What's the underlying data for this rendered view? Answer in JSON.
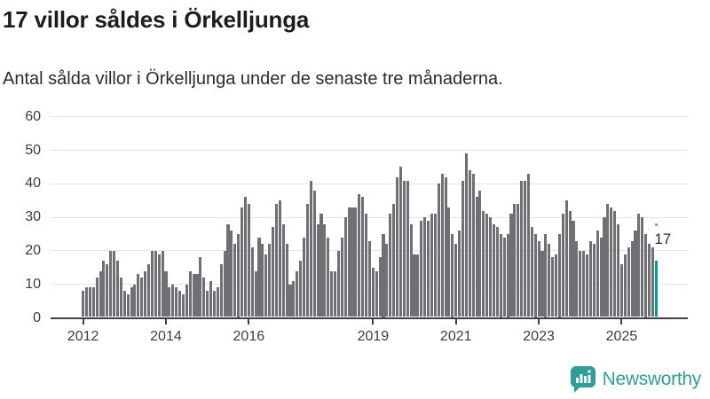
{
  "header": {
    "title": "17 villor såldes i Örkelljunga",
    "subtitle": "Antal sålda villor i Örkelljunga under de senaste tre månaderna."
  },
  "chart_data": {
    "type": "bar",
    "start_month": "2012-01",
    "end_month": "2025-11",
    "values": [
      8,
      9,
      9,
      9,
      12,
      14,
      17,
      16,
      20,
      20,
      17,
      12,
      8,
      7,
      9,
      10,
      13,
      12,
      14,
      16,
      20,
      20,
      19,
      20,
      14,
      9,
      10,
      9,
      8,
      7,
      10,
      14,
      13,
      13,
      18,
      12,
      8,
      11,
      8,
      9,
      16,
      20,
      28,
      26,
      22,
      25,
      33,
      36,
      34,
      21,
      14,
      24,
      22,
      19,
      22,
      27,
      34,
      35,
      28,
      22,
      10,
      11,
      14,
      17,
      24,
      34,
      41,
      38,
      28,
      31,
      28,
      24,
      14,
      14,
      20,
      24,
      30,
      33,
      33,
      33,
      37,
      36,
      31,
      23,
      15,
      14,
      18,
      25,
      22,
      31,
      34,
      42,
      45,
      41,
      41,
      28,
      19,
      19,
      29,
      30,
      29,
      31,
      31,
      40,
      43,
      42,
      33,
      25,
      22,
      26,
      41,
      49,
      44,
      43,
      36,
      38,
      32,
      31,
      30,
      28,
      27,
      25,
      24,
      25,
      31,
      34,
      34,
      41,
      41,
      43,
      27,
      25,
      23,
      20,
      25,
      22,
      18,
      19,
      25,
      31,
      35,
      32,
      29,
      23,
      20,
      20,
      19,
      23,
      22,
      26,
      24,
      30,
      34,
      33,
      32,
      28,
      16,
      19,
      21,
      23,
      26,
      31,
      30,
      25,
      22,
      21,
      17
    ],
    "highlight_last": true,
    "bar_color": "#6f6f74",
    "highlight_color": "#009da0",
    "ylim": [
      0,
      60
    ],
    "yticks": [
      0,
      10,
      20,
      30,
      40,
      50,
      60
    ],
    "grid": "horizontal",
    "xticks": [
      {
        "label": "2012",
        "month_index": 0
      },
      {
        "label": "2014",
        "month_index": 24
      },
      {
        "label": "2016",
        "month_index": 48
      },
      {
        "label": "2019",
        "month_index": 84
      },
      {
        "label": "2021",
        "month_index": 108
      },
      {
        "label": "2023",
        "month_index": 132
      },
      {
        "label": "2025",
        "month_index": 156
      }
    ],
    "annotation": {
      "text": "17",
      "value": 17,
      "marker": "dot"
    }
  },
  "footer": {
    "brand": "Newsworthy",
    "logo_icon": "bar-chart-speech-bubble-icon",
    "brand_color": "#2f9e99"
  }
}
